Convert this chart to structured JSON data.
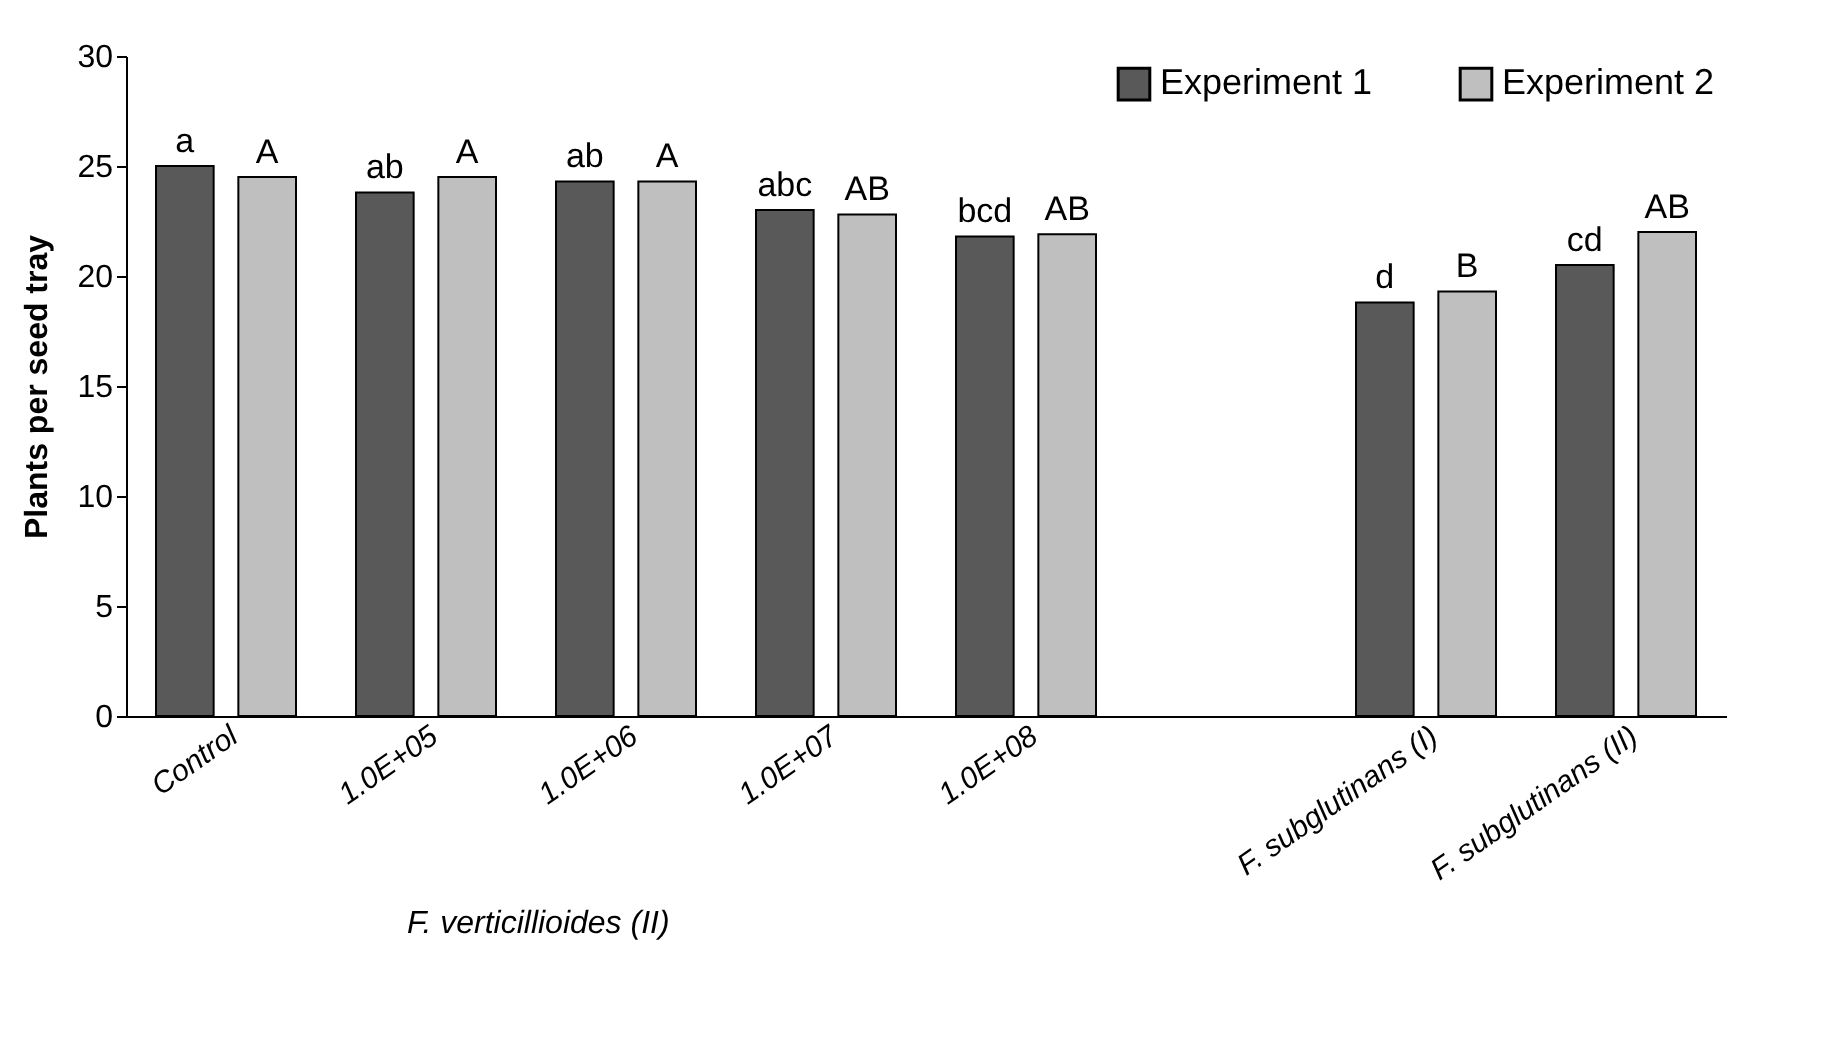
{
  "chart_data": {
    "type": "bar",
    "ylabel": "Plants per seed tray",
    "xlabel": "F. verticillioides  (II)",
    "categories": [
      "Control",
      "1.0E+05",
      "1.0E+06",
      "1.0E+07",
      "1.0E+08",
      null,
      "F. subglutinans (I)",
      "F. subglutinans (II)"
    ],
    "series": [
      {
        "name": "Experiment 1",
        "color": "#595959",
        "values": [
          25.0,
          23.8,
          24.3,
          23.0,
          21.8,
          null,
          18.8,
          20.5
        ],
        "value_labels": [
          "a",
          "ab",
          "ab",
          "abc",
          "bcd",
          null,
          "d",
          "cd"
        ]
      },
      {
        "name": "Experiment 2",
        "color": "#bfbfbf",
        "values": [
          24.5,
          24.5,
          24.3,
          22.8,
          21.9,
          null,
          19.3,
          22.0
        ],
        "value_labels": [
          "A",
          "A",
          "A",
          "AB",
          "AB",
          null,
          "B",
          "AB"
        ]
      }
    ],
    "ylim": [
      0,
      30
    ],
    "yticks": [
      0,
      5,
      10,
      15,
      20,
      25,
      30
    ],
    "grid": false,
    "legend": "top right"
  }
}
